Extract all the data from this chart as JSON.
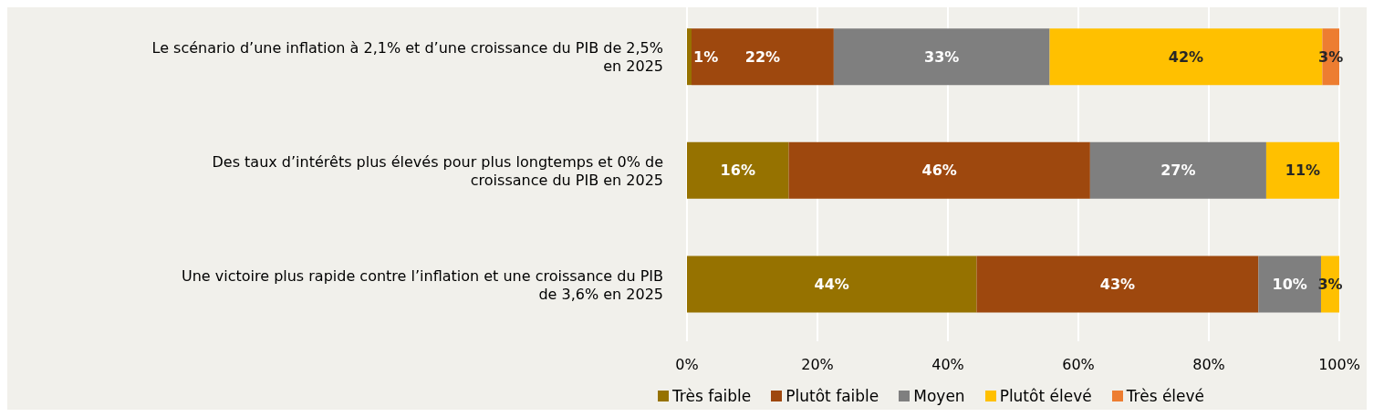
{
  "chart_data": {
    "type": "bar",
    "orientation": "horizontal",
    "stacked": true,
    "categories": [
      "Le scénario d’une inflation à 2,1% et d’une croissance du PIB de 2,5% en 2025",
      "Des taux d’intérêts plus élevés pour plus longtemps et 0% de croissance du PIB en 2025",
      "Une victoire plus rapide contre l’inflation et une croissance du PIB de 3,6% en 2025"
    ],
    "series": [
      {
        "name": "Très faible",
        "color": "#967200",
        "values": [
          0.7,
          15.6,
          44.4
        ],
        "value_labels": [
          "1%",
          "16%",
          "44%"
        ]
      },
      {
        "name": "Plutôt faible",
        "color": "#9e480e",
        "values": [
          21.8,
          46.2,
          43.2
        ],
        "value_labels": [
          "22%",
          "46%",
          "43%"
        ]
      },
      {
        "name": "Moyen",
        "color": "#7f7f7f",
        "values": [
          33.1,
          27,
          9.6
        ],
        "value_labels": [
          "33%",
          "27%",
          "10%"
        ]
      },
      {
        "name": "Plutôt élevé",
        "color": "#ffc000",
        "values": [
          41.8,
          11.2,
          2.8
        ],
        "value_labels": [
          "42%",
          "11%",
          "3%"
        ]
      },
      {
        "name": "Très élevé",
        "color": "#ed7d31",
        "values": [
          2.6,
          null,
          null
        ],
        "value_labels": [
          "3%",
          null,
          null
        ]
      }
    ],
    "xlim": [
      0,
      100
    ],
    "xticks": [
      {
        "value": 0,
        "label": "0%"
      },
      {
        "value": 20,
        "label": "20%"
      },
      {
        "value": 40,
        "label": "40%"
      },
      {
        "value": 60,
        "label": "60%"
      },
      {
        "value": 80,
        "label": "80%"
      },
      {
        "value": 100,
        "label": "100%"
      }
    ],
    "grid": "x",
    "legend": "bottom"
  }
}
